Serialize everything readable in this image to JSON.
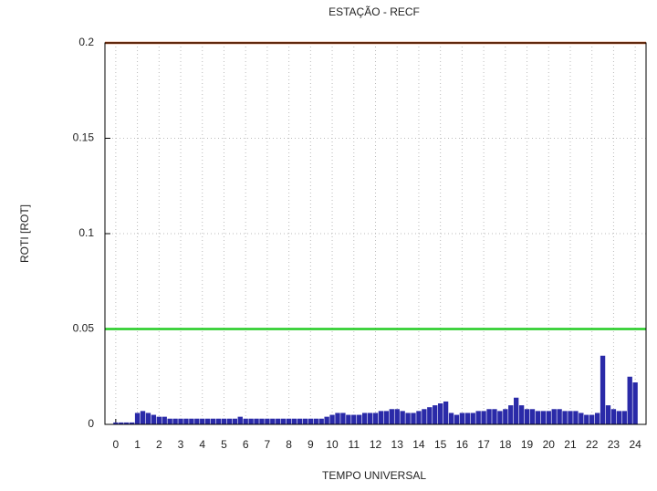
{
  "chart_data": {
    "type": "impulse",
    "title": "ESTAÇÃO - RECF",
    "xlabel": "TEMPO UNIVERSAL",
    "ylabel": "ROTI [ROT]",
    "xlim": [
      -0.5,
      24.5
    ],
    "ylim": [
      0,
      0.2
    ],
    "xticks": [
      0,
      1,
      2,
      3,
      4,
      5,
      6,
      7,
      8,
      9,
      10,
      11,
      12,
      13,
      14,
      15,
      16,
      17,
      18,
      19,
      20,
      21,
      22,
      23,
      24
    ],
    "yticks": [
      0,
      0.05,
      0.1,
      0.15,
      0.2
    ],
    "grid": true,
    "hlines": [
      {
        "value": 0.2,
        "color": "#c0501a"
      },
      {
        "value": 0.05,
        "color": "#22cc22"
      }
    ],
    "series": [
      {
        "color": "#2a2aa8",
        "x": [
          0,
          0.25,
          0.5,
          0.75,
          1,
          1.25,
          1.5,
          1.75,
          2,
          2.25,
          2.5,
          2.75,
          3,
          3.25,
          3.5,
          3.75,
          4,
          4.25,
          4.5,
          4.75,
          5,
          5.25,
          5.5,
          5.75,
          6,
          6.25,
          6.5,
          6.75,
          7,
          7.25,
          7.5,
          7.75,
          8,
          8.25,
          8.5,
          8.75,
          9,
          9.25,
          9.5,
          9.75,
          10,
          10.25,
          10.5,
          10.75,
          11,
          11.25,
          11.5,
          11.75,
          12,
          12.25,
          12.5,
          12.75,
          13,
          13.25,
          13.5,
          13.75,
          14,
          14.25,
          14.5,
          14.75,
          15,
          15.25,
          15.5,
          15.75,
          16,
          16.25,
          16.5,
          16.75,
          17,
          17.25,
          17.5,
          17.75,
          18,
          18.25,
          18.5,
          18.75,
          19,
          19.25,
          19.5,
          19.75,
          20,
          20.25,
          20.5,
          20.75,
          21,
          21.25,
          21.5,
          21.75,
          22,
          22.25,
          22.5,
          22.75,
          23,
          23.25,
          23.5,
          23.75,
          24
        ],
        "values": [
          0.001,
          0.001,
          0.001,
          0.001,
          0.006,
          0.007,
          0.006,
          0.005,
          0.004,
          0.004,
          0.003,
          0.003,
          0.003,
          0.003,
          0.003,
          0.003,
          0.003,
          0.003,
          0.003,
          0.003,
          0.003,
          0.003,
          0.003,
          0.004,
          0.003,
          0.003,
          0.003,
          0.003,
          0.003,
          0.003,
          0.003,
          0.003,
          0.003,
          0.003,
          0.003,
          0.003,
          0.003,
          0.003,
          0.003,
          0.004,
          0.005,
          0.006,
          0.006,
          0.005,
          0.005,
          0.005,
          0.006,
          0.006,
          0.006,
          0.007,
          0.007,
          0.008,
          0.008,
          0.007,
          0.006,
          0.006,
          0.007,
          0.008,
          0.009,
          0.01,
          0.011,
          0.012,
          0.006,
          0.005,
          0.006,
          0.006,
          0.006,
          0.007,
          0.007,
          0.008,
          0.008,
          0.007,
          0.008,
          0.01,
          0.014,
          0.01,
          0.008,
          0.008,
          0.007,
          0.007,
          0.007,
          0.008,
          0.008,
          0.007,
          0.007,
          0.007,
          0.006,
          0.005,
          0.005,
          0.006,
          0.036,
          0.01,
          0.008,
          0.007,
          0.007,
          0.025,
          0.022
        ]
      }
    ]
  }
}
